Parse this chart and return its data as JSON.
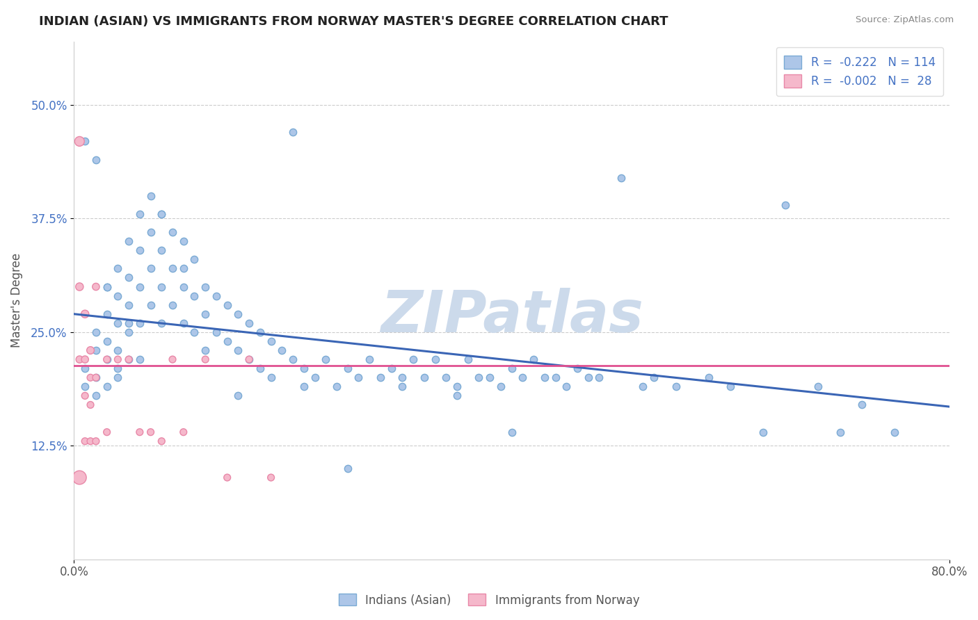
{
  "title": "INDIAN (ASIAN) VS IMMIGRANTS FROM NORWAY MASTER'S DEGREE CORRELATION CHART",
  "source": "Source: ZipAtlas.com",
  "ylabel_label": "Master's Degree",
  "xlim": [
    0.0,
    0.8
  ],
  "ylim": [
    0.0,
    0.57
  ],
  "yticks": [
    0.125,
    0.25,
    0.375,
    0.5
  ],
  "ytick_labels": [
    "12.5%",
    "25.0%",
    "37.5%",
    "50.0%"
  ],
  "xticks": [
    0.0,
    0.8
  ],
  "xtick_labels": [
    "0.0%",
    "80.0%"
  ],
  "R_blue": -0.222,
  "N_blue": 114,
  "R_pink": -0.002,
  "N_pink": 28,
  "blue_color": "#adc6e8",
  "blue_edge": "#7aaad4",
  "pink_color": "#f5b8cb",
  "pink_edge": "#e888a8",
  "trend_blue": "#3a65b5",
  "trend_pink": "#e05090",
  "background": "#ffffff",
  "grid_color": "#cccccc",
  "watermark": "ZIPatlas",
  "watermark_color": "#ccdaeb",
  "legend_color": "#4472c4",
  "blue_trend_y0": 0.27,
  "blue_trend_y1": 0.168,
  "pink_trend_y0": 0.213,
  "pink_trend_y1": 0.213,
  "blue_scatter_x": [
    0.01,
    0.01,
    0.02,
    0.02,
    0.02,
    0.02,
    0.03,
    0.03,
    0.03,
    0.03,
    0.03,
    0.04,
    0.04,
    0.04,
    0.04,
    0.04,
    0.05,
    0.05,
    0.05,
    0.05,
    0.05,
    0.06,
    0.06,
    0.06,
    0.06,
    0.07,
    0.07,
    0.07,
    0.07,
    0.08,
    0.08,
    0.08,
    0.08,
    0.09,
    0.09,
    0.09,
    0.1,
    0.1,
    0.1,
    0.11,
    0.11,
    0.11,
    0.12,
    0.12,
    0.12,
    0.13,
    0.13,
    0.14,
    0.14,
    0.15,
    0.15,
    0.16,
    0.16,
    0.17,
    0.17,
    0.18,
    0.18,
    0.19,
    0.2,
    0.21,
    0.21,
    0.22,
    0.23,
    0.24,
    0.25,
    0.26,
    0.27,
    0.28,
    0.29,
    0.3,
    0.31,
    0.32,
    0.33,
    0.34,
    0.35,
    0.36,
    0.37,
    0.38,
    0.39,
    0.4,
    0.41,
    0.42,
    0.43,
    0.44,
    0.45,
    0.46,
    0.47,
    0.48,
    0.5,
    0.52,
    0.53,
    0.55,
    0.58,
    0.6,
    0.63,
    0.65,
    0.68,
    0.7,
    0.72,
    0.75,
    0.3,
    0.35,
    0.4,
    0.25,
    0.2,
    0.15,
    0.1,
    0.08,
    0.06,
    0.05,
    0.04,
    0.03,
    0.02,
    0.01
  ],
  "blue_scatter_y": [
    0.21,
    0.19,
    0.25,
    0.23,
    0.2,
    0.18,
    0.3,
    0.27,
    0.24,
    0.22,
    0.19,
    0.32,
    0.29,
    0.26,
    0.23,
    0.2,
    0.35,
    0.31,
    0.28,
    0.25,
    0.22,
    0.38,
    0.34,
    0.3,
    0.26,
    0.4,
    0.36,
    0.32,
    0.28,
    0.38,
    0.34,
    0.3,
    0.26,
    0.36,
    0.32,
    0.28,
    0.35,
    0.3,
    0.26,
    0.33,
    0.29,
    0.25,
    0.3,
    0.27,
    0.23,
    0.29,
    0.25,
    0.28,
    0.24,
    0.27,
    0.23,
    0.26,
    0.22,
    0.25,
    0.21,
    0.24,
    0.2,
    0.23,
    0.22,
    0.21,
    0.19,
    0.2,
    0.22,
    0.19,
    0.21,
    0.2,
    0.22,
    0.2,
    0.21,
    0.2,
    0.22,
    0.2,
    0.22,
    0.2,
    0.19,
    0.22,
    0.2,
    0.2,
    0.19,
    0.21,
    0.2,
    0.22,
    0.2,
    0.2,
    0.19,
    0.21,
    0.2,
    0.2,
    0.42,
    0.19,
    0.2,
    0.19,
    0.2,
    0.19,
    0.14,
    0.39,
    0.19,
    0.14,
    0.17,
    0.14,
    0.19,
    0.18,
    0.14,
    0.1,
    0.47,
    0.18,
    0.32,
    0.38,
    0.22,
    0.26,
    0.21,
    0.3,
    0.44,
    0.46
  ],
  "blue_scatter_size": 55,
  "pink_scatter_x": [
    0.005,
    0.005,
    0.005,
    0.005,
    0.01,
    0.01,
    0.01,
    0.01,
    0.015,
    0.015,
    0.015,
    0.015,
    0.02,
    0.02,
    0.02,
    0.03,
    0.03,
    0.04,
    0.05,
    0.06,
    0.07,
    0.08,
    0.09,
    0.1,
    0.12,
    0.14,
    0.16,
    0.18
  ],
  "pink_scatter_y": [
    0.46,
    0.3,
    0.22,
    0.09,
    0.27,
    0.22,
    0.18,
    0.13,
    0.23,
    0.2,
    0.17,
    0.13,
    0.3,
    0.2,
    0.13,
    0.22,
    0.14,
    0.22,
    0.22,
    0.14,
    0.14,
    0.13,
    0.22,
    0.14,
    0.22,
    0.09,
    0.22,
    0.09
  ],
  "pink_scatter_size_base": 55,
  "pink_scatter_sizes": [
    100,
    65,
    55,
    200,
    65,
    55,
    50,
    50,
    60,
    50,
    50,
    50,
    55,
    50,
    50,
    50,
    50,
    50,
    50,
    50,
    50,
    50,
    50,
    50,
    50,
    50,
    50,
    50
  ]
}
